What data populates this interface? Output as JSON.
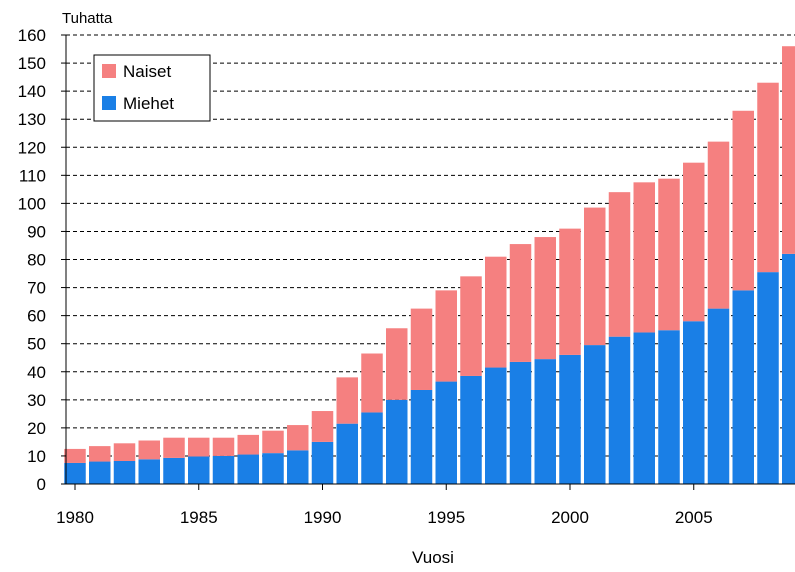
{
  "chart_data": {
    "type": "bar",
    "stacked": true,
    "ylabel": "Tuhatta",
    "xlabel": "Vuosi",
    "ylim": [
      0,
      160
    ],
    "yticks": [
      0,
      10,
      20,
      30,
      40,
      50,
      60,
      70,
      80,
      90,
      100,
      110,
      120,
      130,
      140,
      150,
      160
    ],
    "xticks": [
      "1980",
      "1985",
      "1990",
      "1995",
      "2000",
      "2005"
    ],
    "grid": true,
    "legend_position": "top-left",
    "categories": [
      "1980",
      "1981",
      "1982",
      "1983",
      "1984",
      "1985",
      "1986",
      "1987",
      "1988",
      "1989",
      "1990",
      "1991",
      "1992",
      "1993",
      "1994",
      "1995",
      "1996",
      "1997",
      "1998",
      "1999",
      "2000",
      "2001",
      "2002",
      "2003",
      "2004",
      "2005",
      "2006",
      "2007",
      "2008",
      "2009"
    ],
    "series": [
      {
        "name": "Miehet",
        "color": "#1a7fe6",
        "values": [
          7.5,
          8.0,
          8.2,
          8.8,
          9.3,
          9.8,
          10.0,
          10.5,
          11.0,
          12.0,
          15.0,
          21.5,
          25.5,
          30.0,
          33.5,
          36.5,
          38.5,
          41.5,
          43.5,
          44.5,
          46.0,
          49.5,
          52.5,
          54.0,
          54.8,
          58.0,
          62.5,
          69.0,
          75.5,
          82.0
        ]
      },
      {
        "name": "Naiset",
        "color": "#f58080",
        "values": [
          5.0,
          5.5,
          6.3,
          6.7,
          7.2,
          6.7,
          6.5,
          7.0,
          8.0,
          9.0,
          11.0,
          16.5,
          21.0,
          25.5,
          29.0,
          32.5,
          35.5,
          39.5,
          42.0,
          43.5,
          45.0,
          49.0,
          51.5,
          53.5,
          54.0,
          56.5,
          59.5,
          64.0,
          67.5,
          74.0
        ]
      }
    ]
  }
}
